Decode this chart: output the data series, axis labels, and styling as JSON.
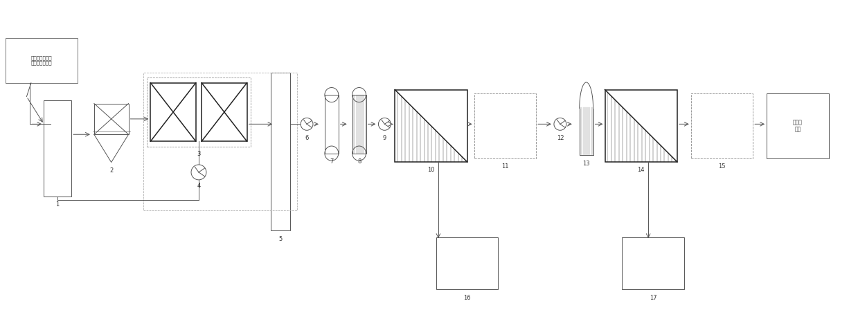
{
  "bg_color": "#ffffff",
  "lc": "#555555",
  "lc_dark": "#222222",
  "text_color": "#333333",
  "input_label": "酚氰废水站生化\n沉淀池系统出水",
  "output_label": "工业水\n回用",
  "figw": 12.39,
  "figh": 4.74,
  "dpi": 100,
  "xlim": [
    0,
    123.9
  ],
  "ylim": [
    0,
    47.4
  ]
}
